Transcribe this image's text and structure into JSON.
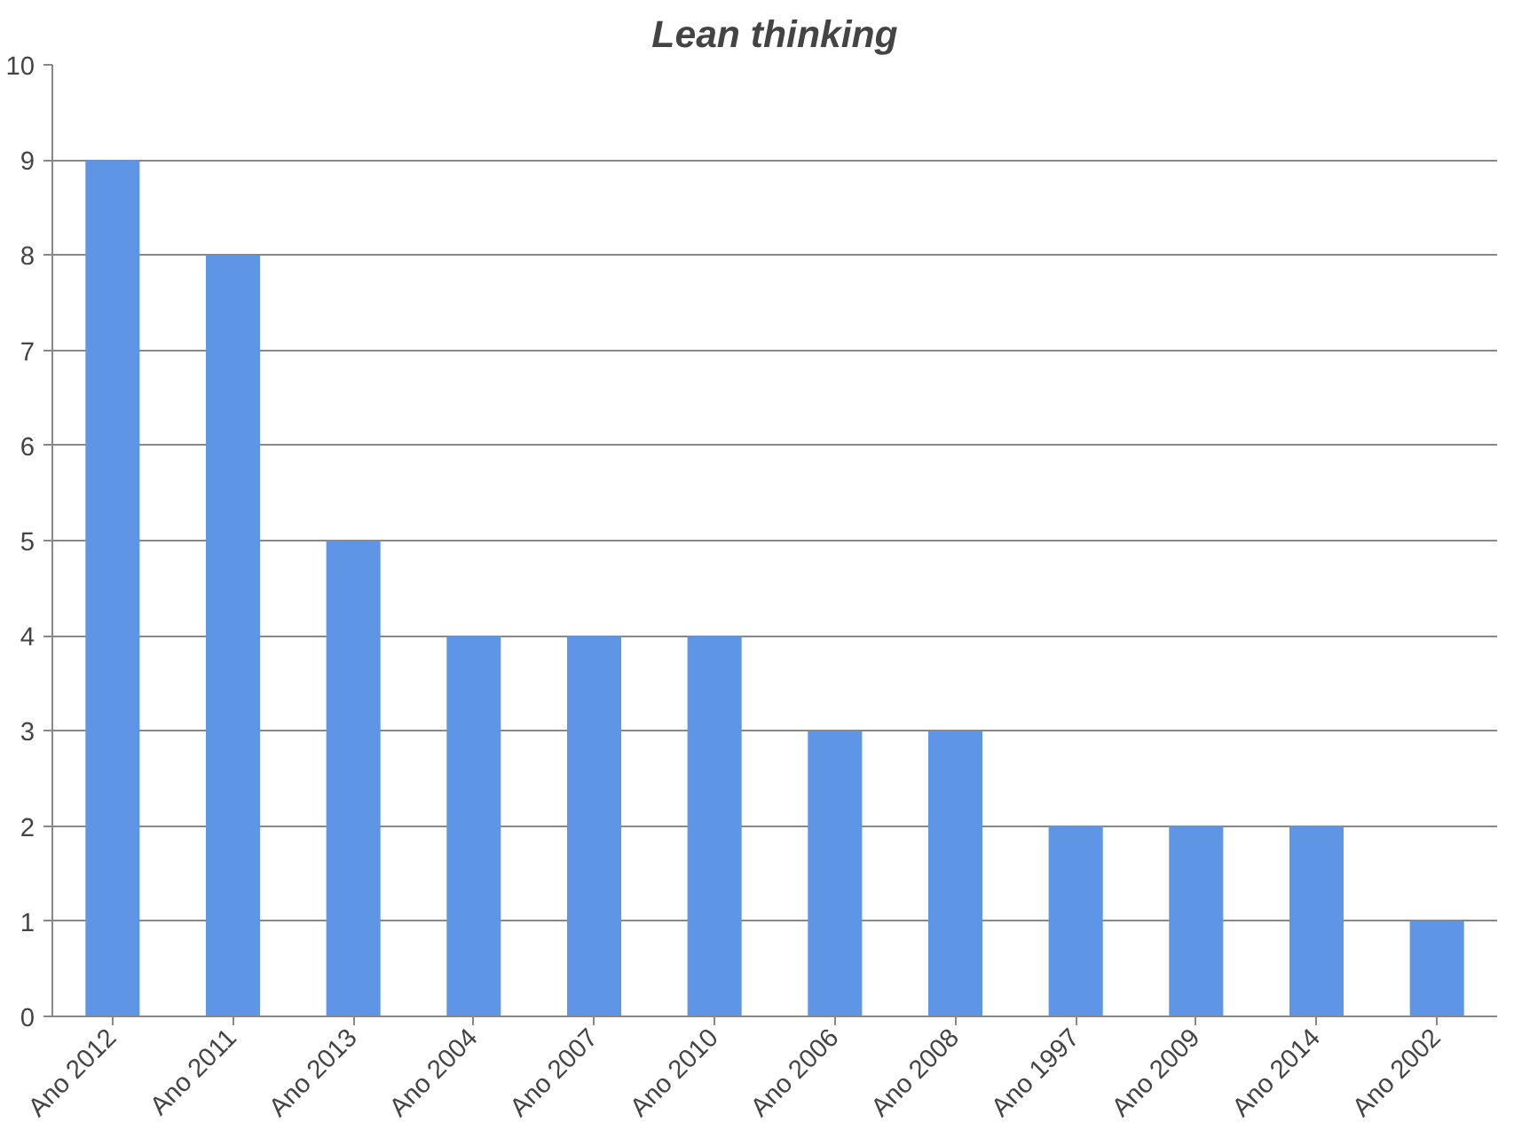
{
  "chart_data": {
    "type": "bar",
    "title": "Lean thinking",
    "categories": [
      "Ano 2012",
      "Ano 2011",
      "Ano 2013",
      "Ano 2004",
      "Ano 2007",
      "Ano 2010",
      "Ano 2006",
      "Ano 2008",
      "Ano 1997",
      "Ano 2009",
      "Ano 2014",
      "Ano 2002"
    ],
    "values": [
      9,
      8,
      5,
      4,
      4,
      4,
      3,
      3,
      2,
      2,
      2,
      1
    ],
    "color": "#5e95e4",
    "ylim": [
      0,
      10
    ],
    "yticks": [
      0,
      1,
      2,
      3,
      4,
      5,
      6,
      7,
      8,
      9,
      10
    ],
    "grid": "y"
  }
}
